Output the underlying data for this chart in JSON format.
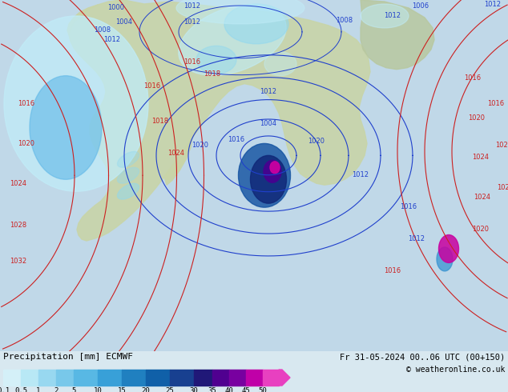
{
  "title_left": "Precipitation [mm] ECMWF",
  "title_right": "Fr 31-05-2024 00..06 UTC (00+150)",
  "copyright": "© weatheronline.co.uk",
  "colorbar_values": [
    "0.1",
    "0.5",
    "1",
    "2",
    "5",
    "10",
    "15",
    "20",
    "25",
    "30",
    "35",
    "40",
    "45",
    "50"
  ],
  "colorbar_colors": [
    "#d4f0f8",
    "#b8e8f5",
    "#98d8f0",
    "#78c8ea",
    "#58b8e4",
    "#38a0d8",
    "#2080c0",
    "#1060a8",
    "#184090",
    "#201878",
    "#500090",
    "#7800a0",
    "#c000a8",
    "#e840c0"
  ],
  "bg_color": "#d8e8f0",
  "legend_bg": "#ffffff",
  "fig_width": 6.34,
  "fig_height": 4.9,
  "dpi": 100,
  "map_ocean": "#c0d8e8",
  "map_land": "#c8d4a8",
  "map_land2": "#b8c898",
  "precip_colors": {
    "lightest": "#c0ecf8",
    "light": "#90d8f0",
    "medium": "#60b8e8",
    "dark": "#3090d0",
    "darker": "#1050a0",
    "darkest": "#102878",
    "purple": "#480090",
    "magenta": "#c800a0",
    "pink": "#e840c8"
  },
  "isobar_blue": "#2040cc",
  "isobar_red": "#cc2020"
}
